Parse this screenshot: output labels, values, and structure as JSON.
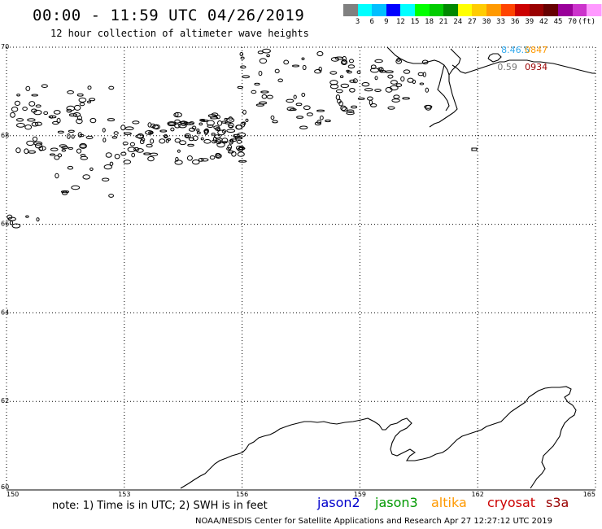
{
  "header": {
    "title": "00:00 - 11:59 UTC 04/26/2019",
    "subtitle": "12 hour collection of altimeter wave heights"
  },
  "colorbar": {
    "colors": [
      "#808080",
      "#00ffff",
      "#00bfff",
      "#0000ff",
      "#00ffff",
      "#00ff00",
      "#00cc00",
      "#008800",
      "#ffff00",
      "#ffcc00",
      "#ff9900",
      "#ff4400",
      "#cc0000",
      "#990000",
      "#660000",
      "#990099",
      "#cc33cc",
      "#ff99ff",
      "#ffccff",
      "#000000"
    ],
    "ticks": [
      "3",
      "6",
      "9",
      "12",
      "15",
      "18",
      "21",
      "24",
      "27",
      "30",
      "33",
      "36",
      "39",
      "42",
      "45",
      "70",
      "(ft)"
    ]
  },
  "map": {
    "lon_range": [
      150,
      165
    ],
    "lat_range": [
      60,
      70
    ],
    "lon_ticks": [
      "150",
      "153",
      "156",
      "159",
      "162",
      "165"
    ],
    "lat_ticks": [
      "70",
      "68",
      "66",
      "64",
      "62",
      "60"
    ],
    "grid_color": "#000000",
    "observations": [
      {
        "label": "8.46.5",
        "color": "#33aaee",
        "lon": 162.6,
        "lat": 69.95
      },
      {
        "label": "0847",
        "color": "#ff9900",
        "lon": 163.2,
        "lat": 69.95
      },
      {
        "label": "0.59",
        "color": "#777777",
        "lon": 162.5,
        "lat": 69.55
      },
      {
        "label": "0934",
        "color": "#990000",
        "lon": 163.2,
        "lat": 69.55
      }
    ]
  },
  "footer": {
    "note": "note: 1) Time is in UTC; 2) SWH is in feet",
    "satellites": [
      {
        "name": "jason2",
        "color": "#0000cc"
      },
      {
        "name": "jason3",
        "color": "#009900"
      },
      {
        "name": "altika",
        "color": "#ff9900"
      },
      {
        "name": "cryosat",
        "color": "#cc0000"
      },
      {
        "name": "s3a",
        "color": "#990000"
      }
    ],
    "credit": "NOAA/NESDIS Center for Satellite Applications and Research   Apr 27 12:27:12 UTC 2019"
  }
}
